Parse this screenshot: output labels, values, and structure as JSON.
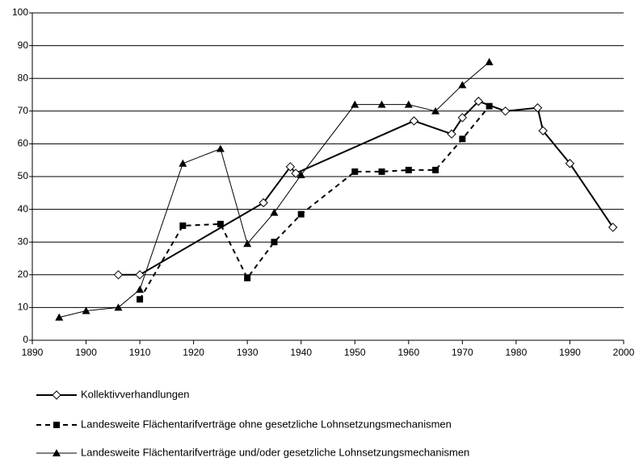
{
  "chart_data": {
    "type": "line",
    "xlim": [
      1890,
      2000
    ],
    "xticks": [
      1890,
      1900,
      1910,
      1920,
      1930,
      1940,
      1950,
      1960,
      1970,
      1980,
      1990,
      2000
    ],
    "ylim": [
      0,
      100
    ],
    "yticks": [
      0,
      10,
      20,
      30,
      40,
      50,
      60,
      70,
      80,
      90,
      100
    ],
    "grid": true,
    "series": [
      {
        "name": "Kollektivverhandlungen",
        "color": "#000000",
        "marker": "diamond",
        "dashed": false,
        "x": [
          1906,
          1910,
          1933,
          1938,
          1939,
          1961,
          1968,
          1970,
          1973,
          1978,
          1984,
          1985,
          1990,
          1998
        ],
        "values": [
          20,
          20,
          42,
          53,
          51,
          67,
          63,
          68,
          73,
          70,
          71,
          64,
          54,
          34.5
        ]
      },
      {
        "name": "Landesweite Flächentarifverträge ohne gesetzliche Lohnsetzungsmechanismen",
        "color": "#000000",
        "marker": "square",
        "dashed": true,
        "x": [
          1910,
          1918,
          1925,
          1930,
          1935,
          1940,
          1950,
          1955,
          1960,
          1965,
          1970,
          1975
        ],
        "values": [
          12.5,
          35,
          35.5,
          19,
          30,
          38.5,
          51.5,
          51.5,
          52,
          52,
          61.5,
          71.5
        ]
      },
      {
        "name": "Landesweite Flächentarifverträge und/oder gesetzliche Lohnsetzungsmechanismen",
        "color": "#000000",
        "marker": "triangle",
        "dashed": false,
        "x": [
          1895,
          1900,
          1906,
          1910,
          1918,
          1925,
          1930,
          1935,
          1940,
          1950,
          1955,
          1960,
          1965,
          1970,
          1975
        ],
        "values": [
          7,
          9,
          10,
          15.5,
          54,
          58.5,
          29.5,
          39,
          50.5,
          72,
          72,
          72,
          70,
          78,
          85
        ]
      }
    ]
  }
}
